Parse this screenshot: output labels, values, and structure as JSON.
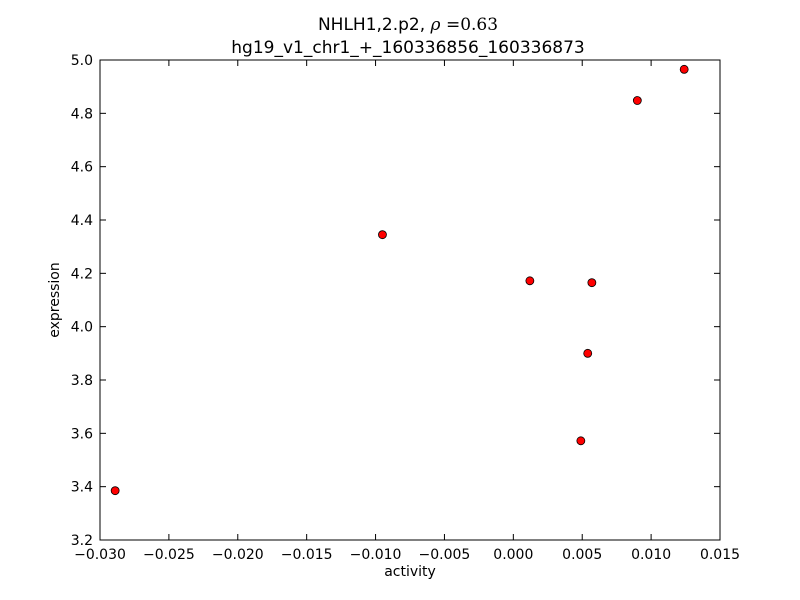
{
  "chart_data": {
    "type": "scatter",
    "title_gene": "NHLH1,2.p2, ",
    "title_rho_symbol": "ρ",
    "title_rho_eq": " =0.63",
    "subtitle": "hg19_v1_chr1_+_160336856_160336873",
    "xlabel": "activity",
    "ylabel": "expression",
    "xlim": [
      -0.03,
      0.015
    ],
    "ylim": [
      3.2,
      5.0
    ],
    "xticks": [
      -0.03,
      -0.025,
      -0.02,
      -0.015,
      -0.01,
      -0.005,
      0.0,
      0.005,
      0.01,
      0.015
    ],
    "xtick_labels": [
      "−0.030",
      "−0.025",
      "−0.020",
      "−0.015",
      "−0.010",
      "−0.005",
      "0.000",
      "0.005",
      "0.010",
      "0.015"
    ],
    "yticks": [
      3.2,
      3.4,
      3.6,
      3.8,
      4.0,
      4.2,
      4.4,
      4.6,
      4.8,
      5.0
    ],
    "ytick_labels": [
      "3.2",
      "3.4",
      "3.6",
      "3.8",
      "4.0",
      "4.2",
      "4.4",
      "4.6",
      "4.8",
      "5.0"
    ],
    "grid": false,
    "marker_color": "#ff0000",
    "marker_edge": "#000000",
    "points": [
      {
        "x": -0.0289,
        "y": 3.385
      },
      {
        "x": -0.0095,
        "y": 4.345
      },
      {
        "x": 0.0012,
        "y": 4.172
      },
      {
        "x": 0.0049,
        "y": 3.572
      },
      {
        "x": 0.0054,
        "y": 3.9
      },
      {
        "x": 0.0057,
        "y": 4.165
      },
      {
        "x": 0.009,
        "y": 4.848
      },
      {
        "x": 0.0124,
        "y": 4.965
      }
    ]
  }
}
